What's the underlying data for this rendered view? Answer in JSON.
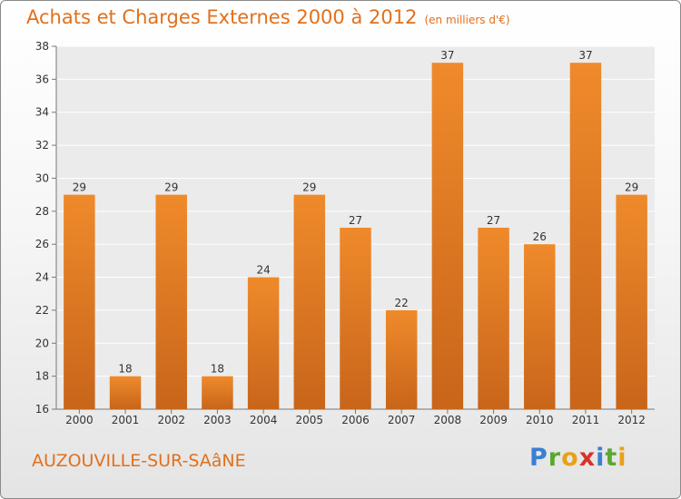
{
  "title": "Achats et Charges Externes 2000 à 2012",
  "unit": "(en milliers d'€)",
  "commune": "AUZOUVILLE-SUR-SAâNE",
  "logo": {
    "letters": [
      "P",
      "r",
      "o",
      "x",
      "i",
      "t",
      "i"
    ],
    "colors": [
      "#3a7fd0",
      "#5aa832",
      "#e8a117",
      "#d8312a",
      "#3a7fd0",
      "#5aa832",
      "#e8a117"
    ]
  },
  "colors": {
    "bar": "#ef8a2b",
    "bar_dark": "#c8651a",
    "accent": "#e2701c"
  },
  "chart_data": {
    "type": "bar",
    "title": "Achats et Charges Externes 2000 à 2012",
    "subtitle": "(en milliers d'€)",
    "categories": [
      "2000",
      "2001",
      "2002",
      "2003",
      "2004",
      "2005",
      "2006",
      "2007",
      "2008",
      "2009",
      "2010",
      "2011",
      "2012"
    ],
    "values": [
      29,
      18,
      29,
      18,
      24,
      29,
      27,
      22,
      37,
      27,
      26,
      37,
      29
    ],
    "ylim": [
      16,
      38
    ],
    "yticks": [
      16,
      18,
      20,
      22,
      24,
      26,
      28,
      30,
      32,
      34,
      36,
      38
    ],
    "grid": true,
    "xlabel": "",
    "ylabel": ""
  }
}
